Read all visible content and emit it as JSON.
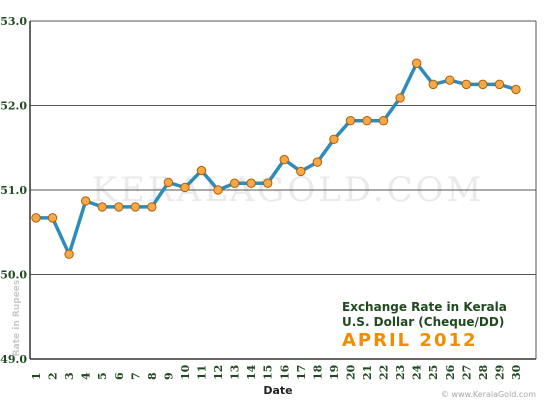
{
  "chart_data": {
    "type": "line",
    "title": "Exchange Rate in Kerala",
    "subtitle": "U.S. Dollar (Cheque/DD)",
    "period": "APRIL 2012",
    "xlabel": "Date",
    "ylabel": "Rate in Rupees",
    "ylim": [
      49.0,
      53.0
    ],
    "y_ticks": [
      "49.0",
      "50.0",
      "51.0",
      "52.0",
      "53.0"
    ],
    "x": [
      1,
      2,
      3,
      4,
      5,
      6,
      7,
      8,
      9,
      10,
      11,
      12,
      13,
      14,
      15,
      16,
      17,
      18,
      19,
      20,
      21,
      22,
      23,
      24,
      25,
      26,
      27,
      28,
      29,
      30
    ],
    "series": [
      {
        "values": [
          50.67,
          50.67,
          50.24,
          50.87,
          50.8,
          50.8,
          50.8,
          50.8,
          51.09,
          51.03,
          51.23,
          51.0,
          51.08,
          51.08,
          51.08,
          51.36,
          51.22,
          51.33,
          51.6,
          51.82,
          51.82,
          51.82,
          52.09,
          52.5,
          52.25,
          52.3,
          52.25,
          52.25,
          52.25,
          52.19
        ]
      }
    ],
    "grid": true,
    "colors": {
      "line": "#2e8cba",
      "marker": "#f5a84a",
      "marker_stroke": "#b35f00",
      "grid": "#555555"
    }
  },
  "watermark": "KERALAGOLD.COM",
  "credit": "© www.KeralaGold.com"
}
